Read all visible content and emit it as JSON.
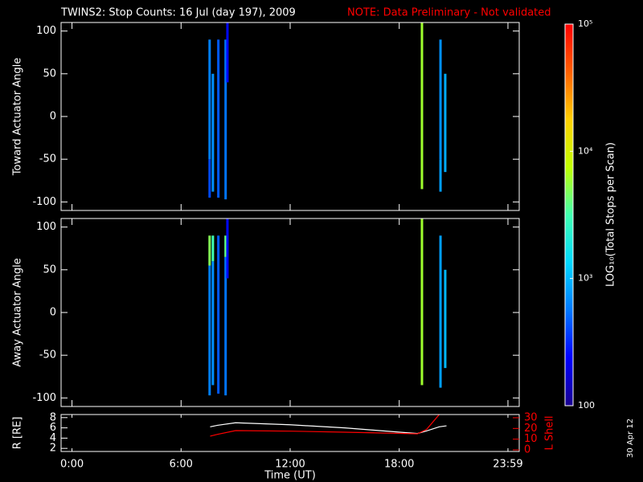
{
  "header": {
    "title": "TWINS2: Stop Counts: 16 Jul (day 197), 2009",
    "note": "NOTE: Data Preliminary - Not validated",
    "date": "30 Apr 12"
  },
  "colorbar": {
    "label": "LOG₁₀(Total Stops per Scan)",
    "lim": [
      100,
      100000
    ],
    "log": true,
    "colormap": [
      "#1a0090",
      "#0000ff",
      "#0078ff",
      "#00d8ff",
      "#40ffb0",
      "#c0ff00",
      "#ffd000",
      "#ff6000",
      "#ff0000"
    ],
    "ticks": [
      100,
      {
        "value": 1000,
        "label": "10³"
      },
      {
        "value": 10000,
        "label": "10⁴"
      },
      {
        "value": 100000,
        "label": "10⁵"
      }
    ]
  },
  "chart_data": [
    {
      "type": "spectrogram",
      "ylabel": "Toward Actuator Angle",
      "xlim": [
        -0.6,
        24.6
      ],
      "ylim": [
        -110,
        110
      ],
      "yticks": [
        -100,
        -50,
        0,
        50,
        100
      ],
      "stripes": [
        {
          "x": 7.57,
          "lo": -95,
          "hi": -50,
          "value": 400
        },
        {
          "x": 7.57,
          "lo": -50,
          "hi": 90,
          "value": 600
        },
        {
          "x": 7.75,
          "lo": -88,
          "hi": 50,
          "value": 700
        },
        {
          "x": 8.05,
          "lo": -95,
          "hi": 90,
          "value": 450
        },
        {
          "x": 8.45,
          "lo": -97,
          "hi": 90,
          "value": 550
        },
        {
          "x": 8.55,
          "lo": 40,
          "hi": 110,
          "value": 250
        },
        {
          "x": 19.25,
          "lo": -85,
          "hi": 110,
          "value": 6000
        },
        {
          "x": 20.27,
          "lo": -88,
          "hi": -50,
          "value": 800
        },
        {
          "x": 20.27,
          "lo": -50,
          "hi": 90,
          "value": 700
        },
        {
          "x": 20.53,
          "lo": -65,
          "hi": 50,
          "value": 900
        }
      ]
    },
    {
      "type": "spectrogram",
      "ylabel": "Away Actuator Angle",
      "xlim": [
        -0.6,
        24.6
      ],
      "ylim": [
        -110,
        110
      ],
      "yticks": [
        -100,
        -50,
        0,
        50,
        100
      ],
      "stripes": [
        {
          "x": 7.57,
          "lo": -97,
          "hi": 55,
          "value": 600
        },
        {
          "x": 7.57,
          "lo": 55,
          "hi": 90,
          "value": 5000
        },
        {
          "x": 7.75,
          "lo": -85,
          "hi": 60,
          "value": 700
        },
        {
          "x": 7.75,
          "lo": 60,
          "hi": 90,
          "value": 3000
        },
        {
          "x": 8.05,
          "lo": -95,
          "hi": 90,
          "value": 450
        },
        {
          "x": 8.45,
          "lo": -97,
          "hi": 65,
          "value": 550
        },
        {
          "x": 8.45,
          "lo": 65,
          "hi": 90,
          "value": 4000
        },
        {
          "x": 8.55,
          "lo": 40,
          "hi": 110,
          "value": 250
        },
        {
          "x": 19.25,
          "lo": -85,
          "hi": 110,
          "value": 6000
        },
        {
          "x": 20.27,
          "lo": -88,
          "hi": 90,
          "value": 800
        },
        {
          "x": 20.53,
          "lo": -65,
          "hi": 50,
          "value": 1000
        }
      ]
    },
    {
      "type": "line",
      "xlabel": "Time (UT)",
      "ylabel": "R [RE]",
      "y2label": "L Shell",
      "xlim": [
        -0.6,
        24.6
      ],
      "ylim": [
        1.4,
        8.6
      ],
      "yticks": [
        2,
        4,
        6,
        8
      ],
      "y2lim": [
        -1.5,
        33
      ],
      "y2ticks": [
        0,
        10,
        20,
        30
      ],
      "xticks": [
        {
          "value": 0,
          "label": "0:00"
        },
        {
          "value": 6,
          "label": "6:00"
        },
        {
          "value": 12,
          "label": "12:00"
        },
        {
          "value": 18,
          "label": "18:00"
        },
        {
          "value": 23.98,
          "label": "23:59"
        }
      ],
      "x": [
        7.6,
        8.0,
        9.0,
        12.0,
        15.0,
        19.0,
        19.5,
        20.2,
        20.6
      ],
      "series": [
        {
          "color": "#ffffff",
          "values": [
            6.2,
            6.5,
            7.0,
            6.6,
            6.0,
            4.9,
            5.4,
            6.2,
            6.4
          ]
        },
        {
          "color": "#ff0000",
          "axis": "y2",
          "values": [
            12.8,
            14.5,
            18,
            17.5,
            16.5,
            15,
            19,
            33,
            null
          ]
        }
      ]
    }
  ]
}
